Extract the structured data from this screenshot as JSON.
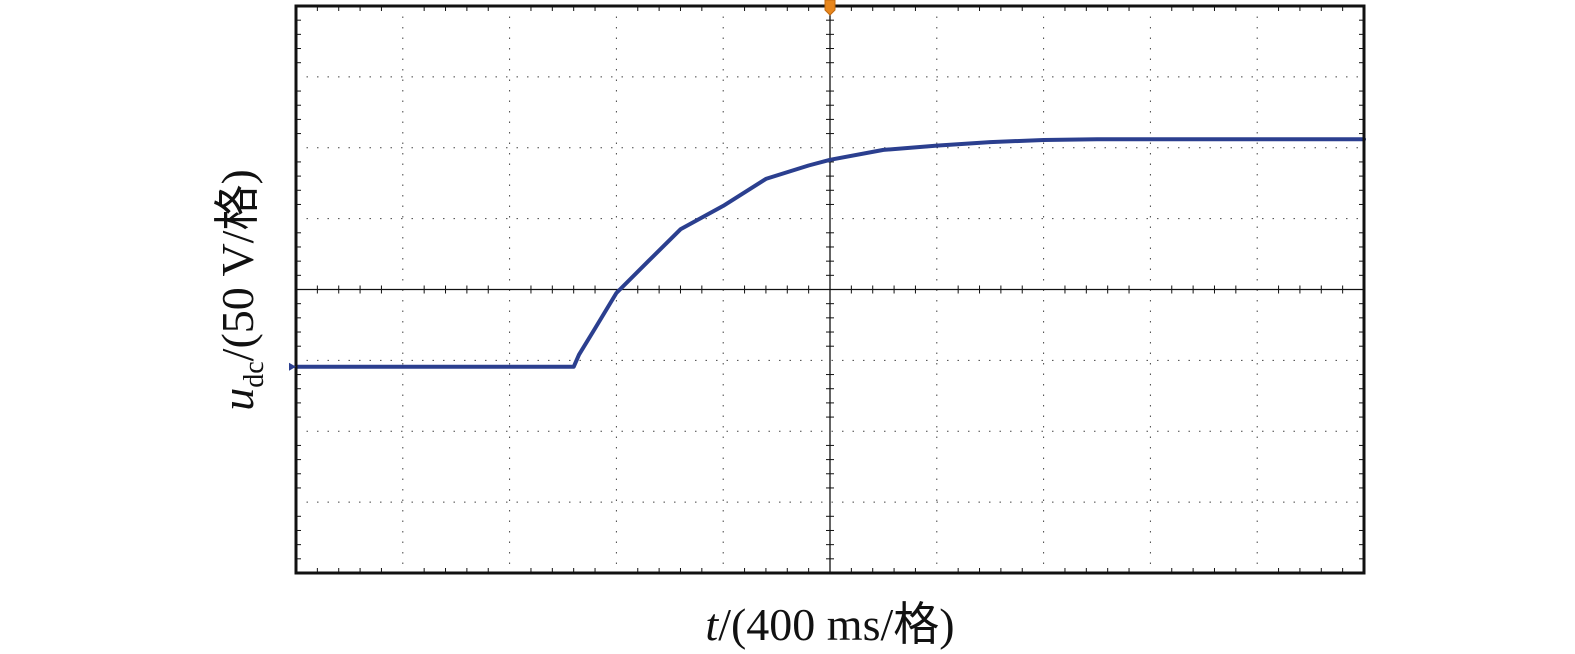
{
  "chart_data": {
    "type": "line",
    "title": "",
    "xlabel": {
      "symbol": "t",
      "unit": "/(400 ms/格)"
    },
    "ylabel": {
      "symbol": "u",
      "subscript": "dc",
      "unit": "/(50 V/格)"
    },
    "x_unit_per_div": "400 ms",
    "y_unit_per_div": "50 V",
    "grid": true,
    "grid_style": "dotted",
    "xlim": [
      0,
      10
    ],
    "ylim": [
      -4,
      4
    ],
    "x_divisions": 10,
    "y_divisions": 8,
    "series": [
      {
        "color": "#2b3f8f",
        "x": [
          0.0,
          1.0,
          2.0,
          2.6,
          2.65,
          2.8,
          3.0,
          3.3,
          3.6,
          4.0,
          4.4,
          4.8,
          5.0,
          5.5,
          6.0,
          6.5,
          7.0,
          7.5,
          8.0,
          9.0,
          10.0
        ],
        "y": [
          -1.09,
          -1.09,
          -1.09,
          -1.09,
          -0.92,
          -0.55,
          -0.05,
          0.4,
          0.85,
          1.18,
          1.56,
          1.75,
          1.83,
          1.97,
          2.03,
          2.08,
          2.11,
          2.12,
          2.12,
          2.12,
          2.12
        ]
      }
    ]
  }
}
